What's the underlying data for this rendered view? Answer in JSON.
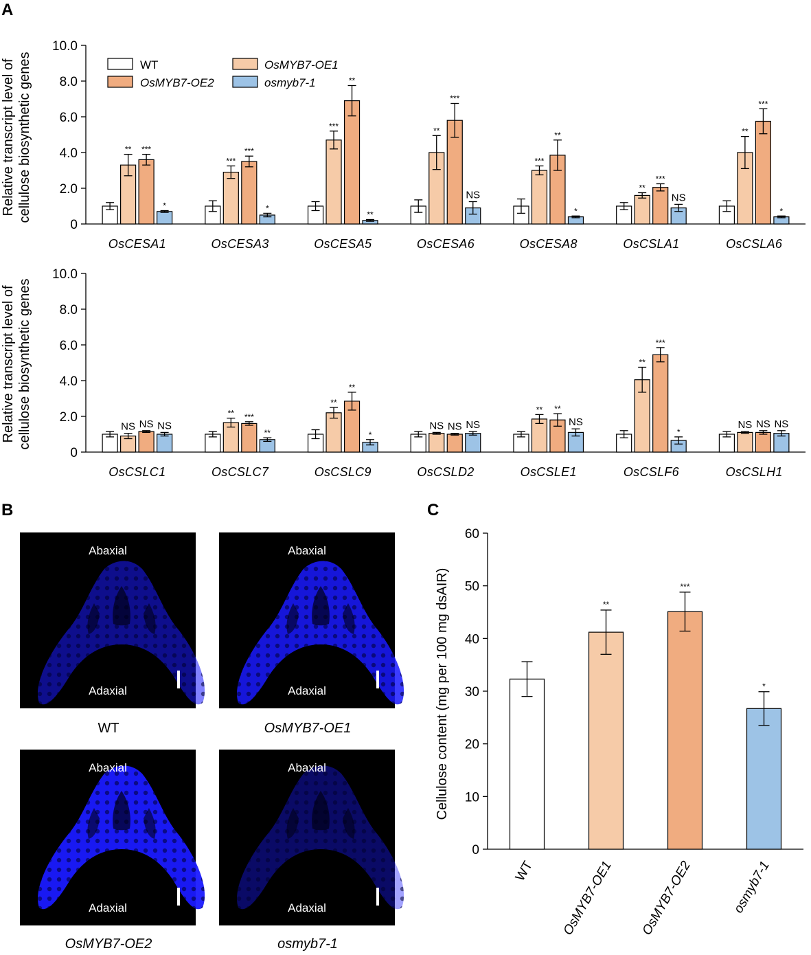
{
  "panel_labels": [
    "A",
    "B",
    "C"
  ],
  "colors": {
    "WT": "#ffffff",
    "OE1": "#f6cba8",
    "OE2": "#f0ac80",
    "KO": "#9dc3e6",
    "stain": "#1a1aff"
  },
  "chart_data": [
    {
      "type": "bar",
      "panel": "A-top",
      "ylabel": [
        "Relative transcript level of",
        "cellulose biosynthetic genes"
      ],
      "ylim": [
        0,
        10
      ],
      "yticks": [
        "0",
        "2.0",
        "4.0",
        "6.0",
        "8.0",
        "10.0"
      ],
      "categories": [
        "OsCESA1",
        "OsCESA3",
        "OsCESA5",
        "OsCESA6",
        "OsCESA8",
        "OsCSLA1",
        "OsCSLA6"
      ],
      "legend": [
        "WT",
        "OsMYB7-OE1",
        "OsMYB7-OE2",
        "osmyb7-1"
      ],
      "series": [
        {
          "name": "WT",
          "values": [
            1.0,
            1.0,
            1.0,
            1.0,
            1.0,
            1.0,
            1.0
          ],
          "errors": [
            0.2,
            0.3,
            0.25,
            0.35,
            0.4,
            0.2,
            0.3
          ],
          "sig": [
            "",
            "",
            "",
            "",
            "",
            "",
            ""
          ]
        },
        {
          "name": "OsMYB7-OE1",
          "values": [
            3.3,
            2.9,
            4.7,
            4.0,
            3.0,
            1.6,
            4.0
          ],
          "errors": [
            0.6,
            0.35,
            0.5,
            0.95,
            0.25,
            0.15,
            0.9
          ],
          "sig": [
            "**",
            "***",
            "***",
            "**",
            "***",
            "**",
            "**"
          ]
        },
        {
          "name": "OsMYB7-OE2",
          "values": [
            3.6,
            3.5,
            6.9,
            5.8,
            3.85,
            2.05,
            5.75
          ],
          "errors": [
            0.3,
            0.3,
            0.85,
            0.95,
            0.85,
            0.2,
            0.7
          ],
          "sig": [
            "***",
            "***",
            "**",
            "***",
            "**",
            "***",
            "***"
          ]
        },
        {
          "name": "osmyb7-1",
          "values": [
            0.7,
            0.5,
            0.2,
            0.9,
            0.4,
            0.9,
            0.4
          ],
          "errors": [
            0.05,
            0.1,
            0.05,
            0.35,
            0.05,
            0.2,
            0.05
          ],
          "sig": [
            "*",
            "*",
            "**",
            "NS",
            "*",
            "NS",
            "*"
          ]
        }
      ]
    },
    {
      "type": "bar",
      "panel": "A-bottom",
      "ylabel": [
        "Relative transcript level of",
        "cellulose biosynthetic genes"
      ],
      "ylim": [
        0,
        10
      ],
      "yticks": [
        "0",
        "2.0",
        "4.0",
        "6.0",
        "8.0",
        "10.0"
      ],
      "categories": [
        "OsCSLC1",
        "OsCSLC7",
        "OsCSLC9",
        "OsCSLD2",
        "OsCSLE1",
        "OsCSLF6",
        "OsCSLH1"
      ],
      "series": [
        {
          "name": "WT",
          "values": [
            1.0,
            1.0,
            1.0,
            1.0,
            1.0,
            1.0,
            1.0
          ],
          "errors": [
            0.15,
            0.15,
            0.25,
            0.15,
            0.15,
            0.2,
            0.15
          ],
          "sig": [
            "",
            "",
            "",
            "",
            "",
            "",
            ""
          ]
        },
        {
          "name": "OsMYB7-OE1",
          "values": [
            0.9,
            1.65,
            2.2,
            1.05,
            1.85,
            4.05,
            1.1
          ],
          "errors": [
            0.15,
            0.25,
            0.3,
            0.05,
            0.25,
            0.7,
            0.05
          ],
          "sig": [
            "NS",
            "**",
            "**",
            "NS",
            "**",
            "**",
            "NS"
          ]
        },
        {
          "name": "OsMYB7-OE2",
          "values": [
            1.15,
            1.6,
            2.85,
            1.0,
            1.8,
            5.45,
            1.1
          ],
          "errors": [
            0.05,
            0.1,
            0.5,
            0.05,
            0.35,
            0.4,
            0.1
          ],
          "sig": [
            "NS",
            "***",
            "**",
            "NS",
            "**",
            "***",
            "NS"
          ]
        },
        {
          "name": "osmyb7-1",
          "values": [
            1.0,
            0.7,
            0.55,
            1.05,
            1.1,
            0.65,
            1.05
          ],
          "errors": [
            0.1,
            0.1,
            0.15,
            0.1,
            0.2,
            0.2,
            0.15
          ],
          "sig": [
            "NS",
            "**",
            "*",
            "NS",
            "NS",
            "*",
            "NS"
          ]
        }
      ]
    },
    {
      "type": "bar",
      "panel": "C",
      "ylabel": "Cellulose content (mg per 100 mg dsAIR)",
      "ylim": [
        0,
        60
      ],
      "yticks": [
        "0",
        "10",
        "20",
        "30",
        "40",
        "50",
        "60"
      ],
      "categories": [
        "WT",
        "OsMYB7-OE1",
        "OsMYB7-OE2",
        "osmyb7-1"
      ],
      "values": [
        32.3,
        41.2,
        45.1,
        26.7
      ],
      "errors": [
        3.3,
        4.2,
        3.7,
        3.2
      ],
      "sig": [
        "",
        "**",
        "***",
        "*"
      ]
    }
  ],
  "micrographs": [
    {
      "caption": "WT",
      "top_label": "Abaxial",
      "bottom_label": "Adaxial",
      "brightness": 0.55
    },
    {
      "caption": "OsMYB7-OE1",
      "top_label": "Abaxial",
      "bottom_label": "Adaxial",
      "brightness": 0.85
    },
    {
      "caption": "OsMYB7-OE2",
      "top_label": "Abaxial",
      "bottom_label": "Adaxial",
      "brightness": 0.95
    },
    {
      "caption": "osmyb7-1",
      "top_label": "Abaxial",
      "bottom_label": "Adaxial",
      "brightness": 0.4
    }
  ]
}
